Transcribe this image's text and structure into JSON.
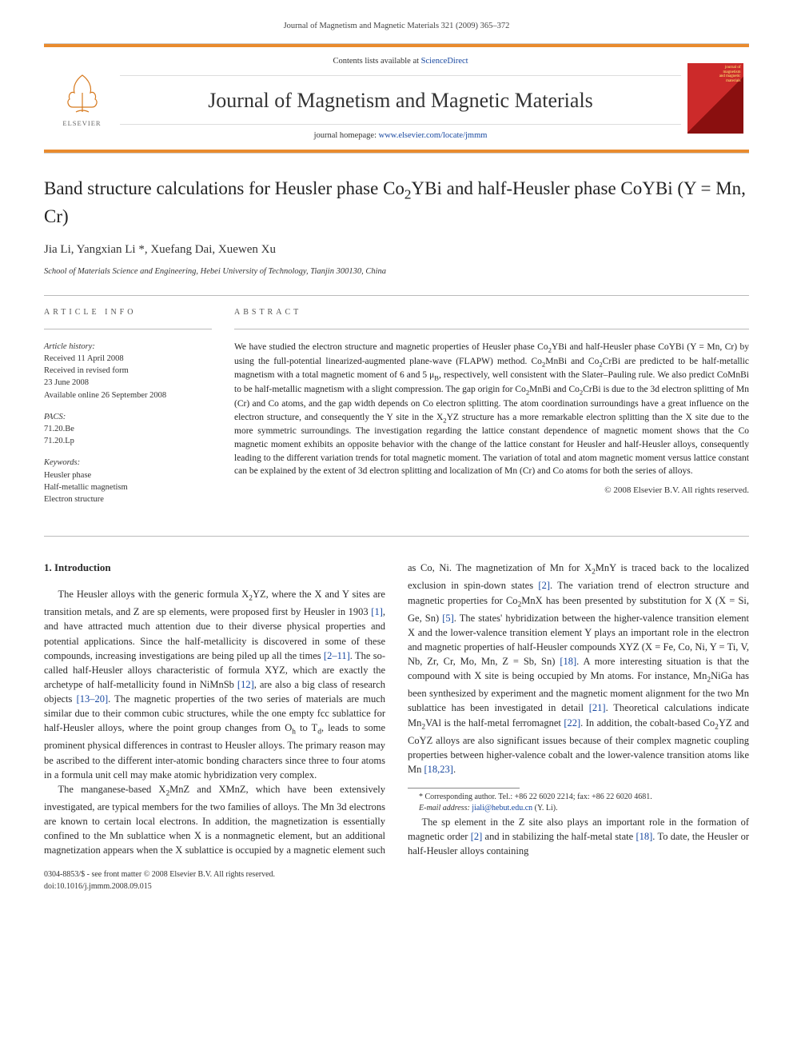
{
  "runningHeader": "Journal of Magnetism and Magnetic Materials 321 (2009) 365–372",
  "masthead": {
    "contentsLine_pre": "Contents lists available at ",
    "contentsLine_link": "ScienceDirect",
    "journalTitle": "Journal of Magnetism and Magnetic Materials",
    "homepage_pre": "journal homepage: ",
    "homepage_link": "www.elsevier.com/locate/jmmm",
    "elsevier": "ELSEVIER",
    "coverLabel": "journal of magnetism and magnetic materials"
  },
  "article": {
    "title_html": "Band structure calculations for Heusler phase Co<sub>2</sub>YBi and half-Heusler phase CoYBi (Y = Mn, Cr)",
    "authors_html": "Jia Li, Yangxian Li *, Xuefang Dai, Xuewen Xu",
    "affiliation": "School of Materials Science and Engineering, Hebei University of Technology, Tianjin 300130, China"
  },
  "info": {
    "label": "article info",
    "history_label": "Article history:",
    "history": [
      "Received 11 April 2008",
      "Received in revised form",
      "23 June 2008",
      "Available online 26 September 2008"
    ],
    "pacs_label": "PACS:",
    "pacs": [
      "71.20.Be",
      "71.20.Lp"
    ],
    "keywords_label": "Keywords:",
    "keywords": [
      "Heusler phase",
      "Half-metallic magnetism",
      "Electron structure"
    ]
  },
  "abstract": {
    "label": "abstract",
    "text_html": "We have studied the electron structure and magnetic properties of Heusler phase Co<sub>2</sub>YBi and half-Heusler phase CoYBi (Y = Mn, Cr) by using the full-potential linearized-augmented plane-wave (FLAPW) method. Co<sub>2</sub>MnBi and Co<sub>2</sub>CrBi are predicted to be half-metallic magnetism with a total magnetic moment of 6 and 5 μ<sub>B</sub>, respectively, well consistent with the Slater–Pauling rule. We also predict CoMnBi to be half-metallic magnetism with a slight compression. The gap origin for Co<sub>2</sub>MnBi and Co<sub>2</sub>CrBi is due to the 3d electron splitting of Mn (Cr) and Co atoms, and the gap width depends on Co electron splitting. The atom coordination surroundings have a great influence on the electron structure, and consequently the Y site in the X<sub>2</sub>YZ structure has a more remarkable electron splitting than the X site due to the more symmetric surroundings. The investigation regarding the lattice constant dependence of magnetic moment shows that the Co magnetic moment exhibits an opposite behavior with the change of the lattice constant for Heusler and half-Heusler alloys, consequently leading to the different variation trends for total magnetic moment. The variation of total and atom magnetic moment versus lattice constant can be explained by the extent of 3d electron splitting and localization of Mn (Cr) and Co atoms for both the series of alloys.",
    "copyright": "© 2008 Elsevier B.V. All rights reserved."
  },
  "body": {
    "heading": "1. Introduction",
    "p1_html": "The Heusler alloys with the generic formula X<sub>2</sub>YZ, where the X and Y sites are transition metals, and Z are sp elements, were proposed first by Heusler in 1903 <span class=\"ref\">[1]</span>, and have attracted much attention due to their diverse physical properties and potential applications. Since the half-metallicity is discovered in some of these compounds, increasing investigations are being piled up all the times <span class=\"ref\">[2–11]</span>. The so-called half-Heusler alloys characteristic of formula XYZ, which are exactly the archetype of half-metallicity found in NiMnSb <span class=\"ref\">[12]</span>, are also a big class of research objects <span class=\"ref\">[13–20]</span>. The magnetic properties of the two series of materials are much similar due to their common cubic structures, while the one empty fcc sublattice for half-Heusler alloys, where the point group changes from O<sub>h</sub> to T<sub>d</sub>, leads to some prominent physical differences in contrast to Heusler alloys. The primary reason may be ascribed to the different inter-atomic bonding characters since three to four atoms in a formula unit cell may make atomic hybridization very complex.",
    "p2_html": "The manganese-based X<sub>2</sub>MnZ and XMnZ, which have been extensively investigated, are typical members for the two families of alloys. The Mn 3d electrons are known to certain local electrons. In addition, the magnetization is essentially confined to the Mn sublattice when X is a nonmagnetic element, but an additional magnetization appears when the X sublattice is occupied by a magnetic element such as Co, Ni. The magnetization of Mn for X<sub>2</sub>MnY is traced back to the localized exclusion in spin-down states <span class=\"ref\">[2]</span>. The variation trend of electron structure and magnetic properties for Co<sub>2</sub>MnX has been presented by substitution for X (X = Si, Ge, Sn) <span class=\"ref\">[5]</span>. The states' hybridization between the higher-valence transition element X and the lower-valence transition element Y plays an important role in the electron and magnetic properties of half-Heusler compounds XYZ (X = Fe, Co, Ni, Y = Ti, V, Nb, Zr, Cr, Mo, Mn, Z = Sb, Sn) <span class=\"ref\">[18]</span>. A more interesting situation is that the compound with X site is being occupied by Mn atoms. For instance, Mn<sub>2</sub>NiGa has been synthesized by experiment and the magnetic moment alignment for the two Mn sublattice has been investigated in detail <span class=\"ref\">[21]</span>. Theoretical calculations indicate Mn<sub>2</sub>VAl is the half-metal ferromagnet <span class=\"ref\">[22]</span>. In addition, the cobalt-based Co<sub>2</sub>YZ and CoYZ alloys are also significant issues because of their complex magnetic coupling properties between higher-valence cobalt and the lower-valence transition atoms like Mn <span class=\"ref\">[18,23]</span>.",
    "p3_html": "The sp element in the Z site also plays an important role in the formation of magnetic order <span class=\"ref\">[2]</span> and in stabilizing the half-metal state <span class=\"ref\">[18]</span>. To date, the Heusler or half-Heusler alloys containing"
  },
  "footnote": {
    "corr": "* Corresponding author. Tel.: +86 22 6020 2214; fax: +86 22 6020 4681.",
    "email_label": "E-mail address: ",
    "email": "jiali@hebut.edu.cn",
    "email_who": " (Y. Li)."
  },
  "bottomMeta": {
    "line1": "0304-8853/$ - see front matter © 2008 Elsevier B.V. All rights reserved.",
    "line2": "doi:10.1016/j.jmmm.2008.09.015"
  },
  "colors": {
    "orangeRule": "#e98b2e",
    "coverRed1": "#cc2a2a",
    "coverRed2": "#8a0f0f",
    "link": "#1848a0"
  }
}
